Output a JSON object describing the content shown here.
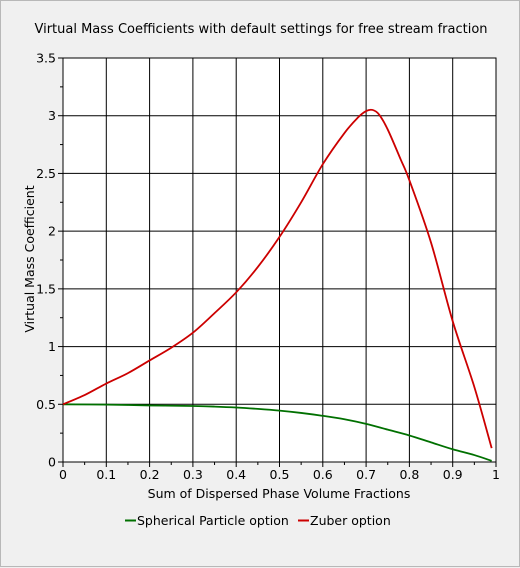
{
  "chart_data": {
    "type": "line",
    "title": "Virtual Mass Coefficients with default settings for free stream fraction",
    "xlabel": "Sum of Dispersed Phase Volume Fractions",
    "ylabel": "Virtual Mass Coefficient",
    "xlim": [
      0,
      1
    ],
    "ylim": [
      0,
      3.5
    ],
    "x_ticks": [
      "0",
      "0.1",
      "0.2",
      "0.3",
      "0.4",
      "0.5",
      "0.6",
      "0.7",
      "0.8",
      "0.9",
      "1"
    ],
    "y_ticks": [
      "0",
      "0.5",
      "1",
      "1.5",
      "2",
      "2.5",
      "3",
      "3.5"
    ],
    "grid": true,
    "legend_position": "bottom",
    "series": [
      {
        "name": "Spherical Particle option",
        "color": "#007000",
        "x": [
          0,
          0.1,
          0.2,
          0.3,
          0.35,
          0.4,
          0.45,
          0.5,
          0.55,
          0.6,
          0.65,
          0.7,
          0.75,
          0.8,
          0.85,
          0.9,
          0.95,
          0.99
        ],
        "y": [
          0.5,
          0.497,
          0.49,
          0.485,
          0.48,
          0.472,
          0.46,
          0.445,
          0.425,
          0.4,
          0.37,
          0.33,
          0.28,
          0.23,
          0.17,
          0.11,
          0.06,
          0.01
        ]
      },
      {
        "name": "Zuber option",
        "color": "#cc0000",
        "x": [
          0,
          0.05,
          0.1,
          0.15,
          0.2,
          0.25,
          0.3,
          0.35,
          0.4,
          0.45,
          0.5,
          0.55,
          0.6,
          0.65,
          0.68,
          0.7,
          0.715,
          0.73,
          0.75,
          0.78,
          0.8,
          0.85,
          0.9,
          0.95,
          0.99
        ],
        "y": [
          0.5,
          0.58,
          0.68,
          0.77,
          0.88,
          0.99,
          1.12,
          1.29,
          1.47,
          1.69,
          1.95,
          2.25,
          2.58,
          2.85,
          2.98,
          3.04,
          3.05,
          3.01,
          2.88,
          2.62,
          2.44,
          1.9,
          1.22,
          0.65,
          0.12
        ]
      }
    ]
  }
}
